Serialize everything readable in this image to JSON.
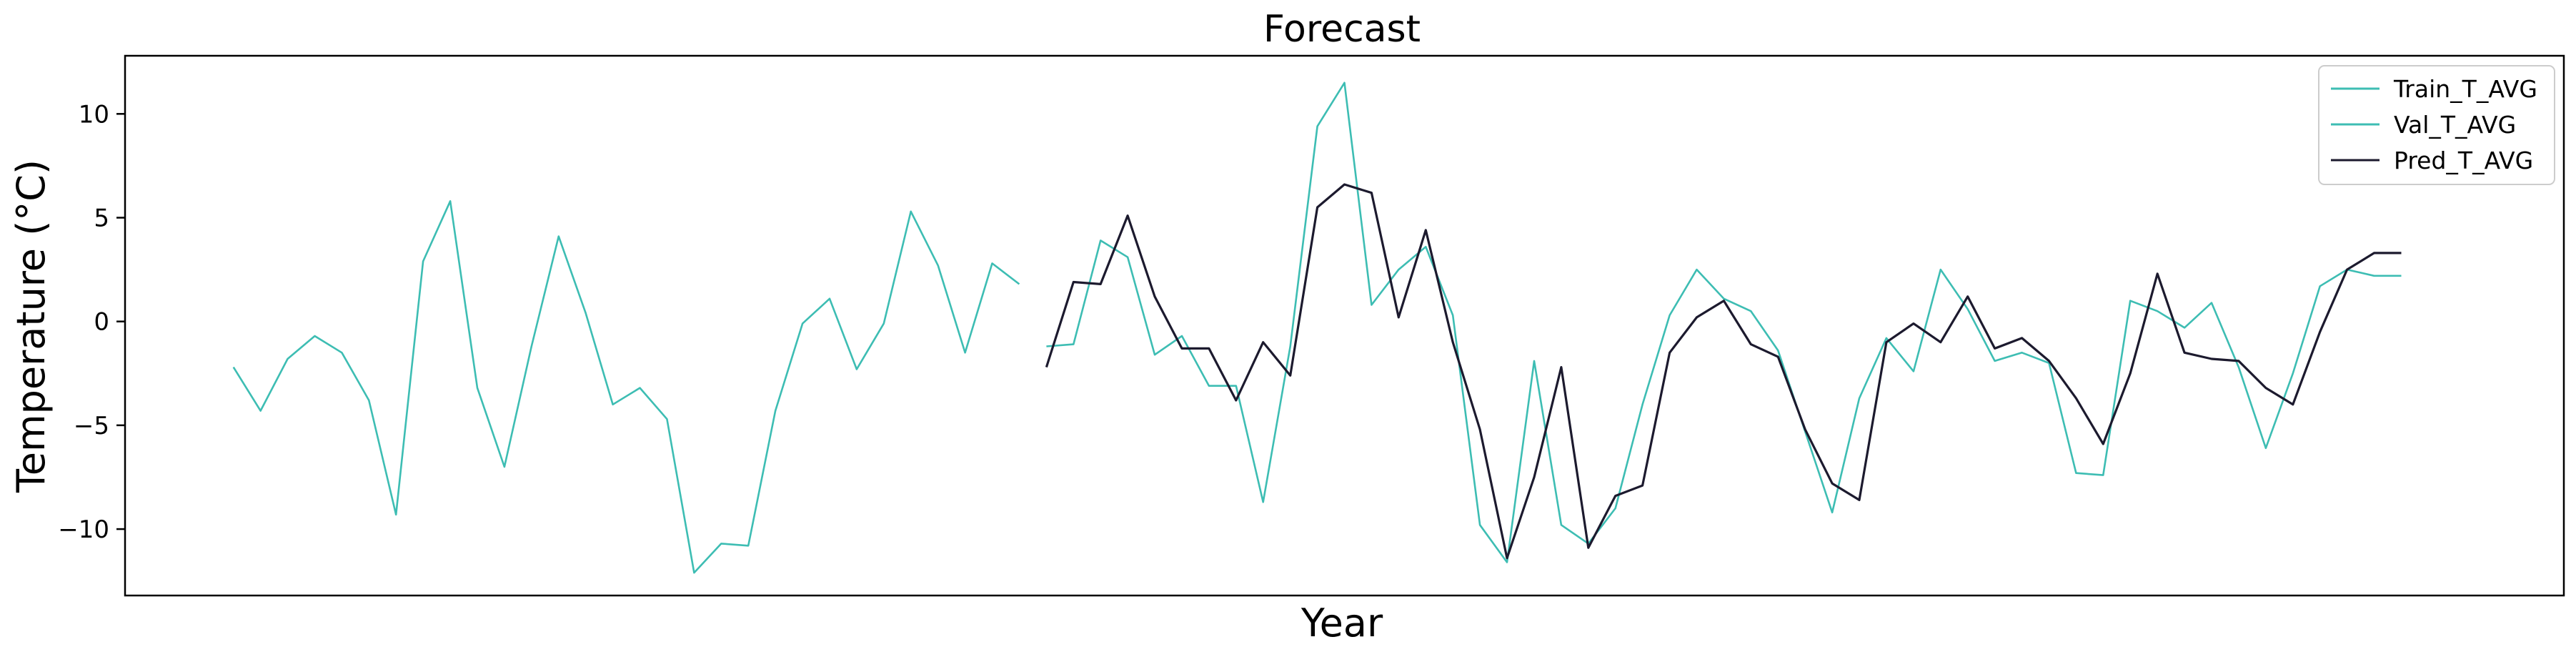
{
  "chart_data": {
    "type": "line",
    "title": "Forecast",
    "xlabel": "Year",
    "ylabel": "Temperature (°C)",
    "ylim": [
      -13.2,
      12.8
    ],
    "yticks": [
      -10,
      -5,
      0,
      5,
      10
    ],
    "ytick_labels": [
      "−10",
      "−5",
      "0",
      "5",
      "10"
    ],
    "xticks_visible": false,
    "grid": false,
    "legend": "top-right",
    "series": [
      {
        "name": "Train_T_AVG",
        "color": "#3dbdb3",
        "x": [
          0,
          1,
          2,
          3,
          4,
          5,
          6,
          7,
          8,
          9,
          10,
          11,
          12,
          13,
          14,
          15,
          16,
          17,
          18,
          19,
          20,
          21,
          22,
          23,
          24,
          25,
          26,
          27,
          28,
          29
        ],
        "values": [
          -2.2,
          -4.3,
          -1.8,
          -0.7,
          -1.5,
          -3.8,
          -9.3,
          2.9,
          5.8,
          -3.2,
          -7.0,
          -1.2,
          4.1,
          0.4,
          -4.0,
          -3.2,
          -4.7,
          -12.1,
          -10.7,
          -10.8,
          -4.3,
          -0.1,
          1.1,
          -2.3,
          -0.1,
          5.3,
          2.7,
          -1.5,
          2.8,
          1.8
        ]
      },
      {
        "name": "Val_T_AVG",
        "color": "#3dbdb3",
        "x": [
          30,
          31,
          32,
          33,
          34,
          35,
          36,
          37,
          38,
          39,
          40,
          41,
          42,
          43,
          44,
          45,
          46,
          47,
          48,
          49,
          50,
          51,
          52,
          53,
          54,
          55,
          56,
          57,
          58,
          59,
          60,
          61,
          62,
          63,
          64,
          65,
          66,
          67,
          68,
          69,
          70,
          71,
          72,
          73,
          74,
          75,
          76,
          77,
          78,
          79,
          80
        ],
        "values": [
          -1.2,
          -1.1,
          3.9,
          3.1,
          -1.6,
          -0.7,
          -3.1,
          -3.1,
          -8.7,
          -1.2,
          9.4,
          11.5,
          0.8,
          2.5,
          3.6,
          0.3,
          -9.8,
          -11.6,
          -1.9,
          -9.8,
          -10.7,
          -9.0,
          -4.0,
          0.3,
          2.5,
          1.1,
          0.5,
          -1.4,
          -5.3,
          -9.2,
          -3.7,
          -0.8,
          -2.4,
          2.5,
          0.6,
          -1.9,
          -1.5,
          -2.0,
          -7.3,
          -7.4,
          1.0,
          0.5,
          -0.3,
          0.9,
          -2.2,
          -6.1,
          -2.5,
          1.7,
          2.5,
          2.2,
          2.2
        ]
      },
      {
        "name": "Pred_T_AVG",
        "color": "#1c1a2e",
        "x": [
          30,
          31,
          32,
          33,
          34,
          35,
          36,
          37,
          38,
          39,
          40,
          41,
          42,
          43,
          44,
          45,
          46,
          47,
          48,
          49,
          50,
          51,
          52,
          53,
          54,
          55,
          56,
          57,
          58,
          59,
          60,
          61,
          62,
          63,
          64,
          65,
          66,
          67,
          68,
          69,
          70,
          71,
          72,
          73,
          74,
          75,
          76,
          77,
          78,
          79,
          80
        ],
        "values": [
          -2.2,
          1.9,
          1.8,
          5.1,
          1.2,
          -1.3,
          -1.3,
          -3.8,
          -1.0,
          -2.6,
          5.5,
          6.6,
          6.2,
          0.2,
          4.4,
          -1.0,
          -5.2,
          -11.4,
          -7.5,
          -2.2,
          -10.9,
          -8.4,
          -7.9,
          -1.5,
          0.2,
          1.0,
          -1.1,
          -1.7,
          -5.2,
          -7.8,
          -8.6,
          -1.0,
          -0.1,
          -1.0,
          1.2,
          -1.3,
          -0.8,
          -1.9,
          -3.7,
          -5.9,
          -2.5,
          2.3,
          -1.5,
          -1.8,
          -1.9,
          -3.2,
          -4.0,
          -0.5,
          2.5,
          3.3,
          3.3
        ]
      }
    ],
    "xlim": [
      -4,
      86
    ]
  }
}
